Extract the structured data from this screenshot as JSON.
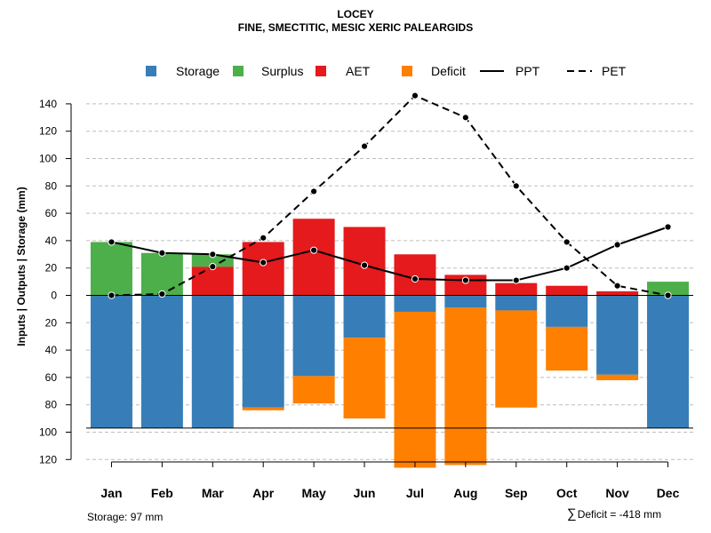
{
  "chart_data": {
    "type": "bar",
    "title": "LOCEY",
    "subtitle": "FINE, SMECTITIC, MESIC XERIC PALEARGIDS",
    "ylabel": "Inputs | Outputs | Storage    (mm)",
    "ylim": [
      -120,
      150
    ],
    "yticks_up": [
      0,
      20,
      40,
      60,
      80,
      100,
      120,
      140
    ],
    "yticks_down": [
      20,
      40,
      60,
      80,
      100,
      120
    ],
    "categories": [
      "Jan",
      "Feb",
      "Mar",
      "Apr",
      "May",
      "Jun",
      "Jul",
      "Aug",
      "Sep",
      "Oct",
      "Nov",
      "Dec"
    ],
    "legend": [
      "Storage",
      "Surplus",
      "AET",
      "Deficit",
      "PPT",
      "PET"
    ],
    "colors": {
      "Storage": "#377eb8",
      "Surplus": "#4daf4a",
      "AET": "#e41a1c",
      "Deficit": "#ff7f00",
      "PPT": "#000000",
      "PET": "#000000"
    },
    "series": [
      {
        "name": "Surplus",
        "values": [
          39,
          31,
          9,
          0,
          0,
          0,
          0,
          0,
          0,
          0,
          0,
          10
        ]
      },
      {
        "name": "AET",
        "values": [
          0,
          0,
          21,
          39,
          56,
          50,
          30,
          15,
          9,
          7,
          3,
          0
        ]
      },
      {
        "name": "Storage",
        "values": [
          97,
          97,
          97,
          82,
          59,
          31,
          12,
          9,
          11,
          23,
          58,
          97
        ]
      },
      {
        "name": "Deficit",
        "values": [
          0,
          0,
          0,
          2,
          20,
          59,
          114,
          115,
          71,
          32,
          4,
          0
        ]
      },
      {
        "name": "PPT",
        "values": [
          39,
          31,
          30,
          24,
          33,
          22,
          12,
          11,
          11,
          20,
          37,
          50
        ]
      },
      {
        "name": "PET",
        "values": [
          0,
          1,
          21,
          42,
          76,
          109,
          146,
          130,
          80,
          39,
          7,
          0
        ]
      }
    ],
    "reference_lines": [
      0,
      -97
    ],
    "footer_left": "Storage: 97 mm",
    "footer_right": "Deficit = -418 mm",
    "footer_right_symbol": "∑"
  }
}
